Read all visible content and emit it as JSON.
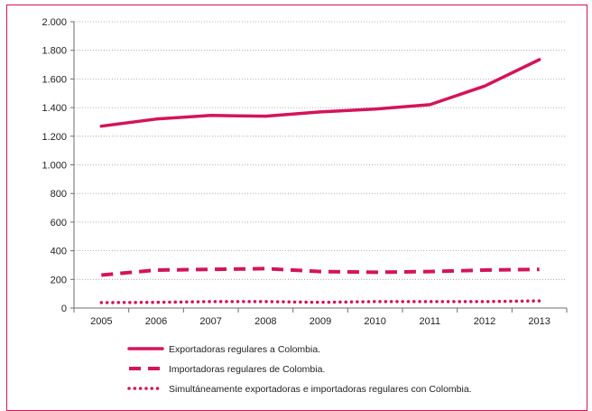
{
  "chart_data": {
    "type": "line",
    "title": "",
    "xlabel": "",
    "ylabel": "",
    "x": [
      "2005",
      "2006",
      "2007",
      "2008",
      "2009",
      "2010",
      "2011",
      "2012",
      "2013"
    ],
    "ylim": [
      0,
      2000
    ],
    "yticks": [
      0,
      200,
      400,
      600,
      800,
      1000,
      1200,
      1400,
      1600,
      1800,
      2000
    ],
    "ytick_labels": [
      "0",
      "200",
      "400",
      "600",
      "800",
      "1.000",
      "1.200",
      "1.400",
      "1.600",
      "1.800",
      "2.000"
    ],
    "grid": "horizontal-dotted",
    "legend_position": "bottom",
    "series": [
      {
        "name": "Exportadoras regulares a Colombia.",
        "style": "solid",
        "color": "#d4145a",
        "values": [
          1270,
          1320,
          1345,
          1340,
          1370,
          1390,
          1420,
          1550,
          1735
        ]
      },
      {
        "name": "Importadoras regulares de Colombia.",
        "style": "dashed",
        "color": "#d4145a",
        "values": [
          230,
          265,
          270,
          275,
          255,
          250,
          255,
          265,
          270
        ]
      },
      {
        "name": "Simultáneamente exportadoras e importadoras regulares con Colombia.",
        "style": "dotted",
        "color": "#d4145a",
        "values": [
          38,
          40,
          45,
          45,
          40,
          45,
          45,
          45,
          50
        ]
      }
    ]
  }
}
